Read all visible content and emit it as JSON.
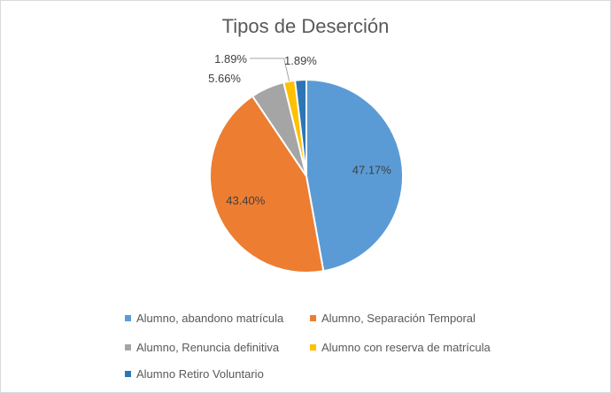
{
  "chart_data": {
    "type": "pie",
    "title": "Tipos de Deserción",
    "slices": [
      {
        "label": "Alumno, abandono matrícula",
        "value": 47.17,
        "value_label": "47.17%",
        "color": "#5B9BD5"
      },
      {
        "label": "Alumno, Separación Temporal",
        "value": 43.4,
        "value_label": "43.40%",
        "color": "#ED7D31"
      },
      {
        "label": "Alumno, Renuncia definitiva",
        "value": 5.66,
        "value_label": "5.66%",
        "color": "#A5A5A5"
      },
      {
        "label": "Alumno con reserva de matrícula",
        "value": 1.89,
        "value_label": "1.89%",
        "color": "#FFC000"
      },
      {
        "label": "Alumno Retiro Voluntario",
        "value": 1.89,
        "value_label": "1.89%",
        "color": "#2E75B6"
      }
    ],
    "legend_position": "bottom"
  }
}
